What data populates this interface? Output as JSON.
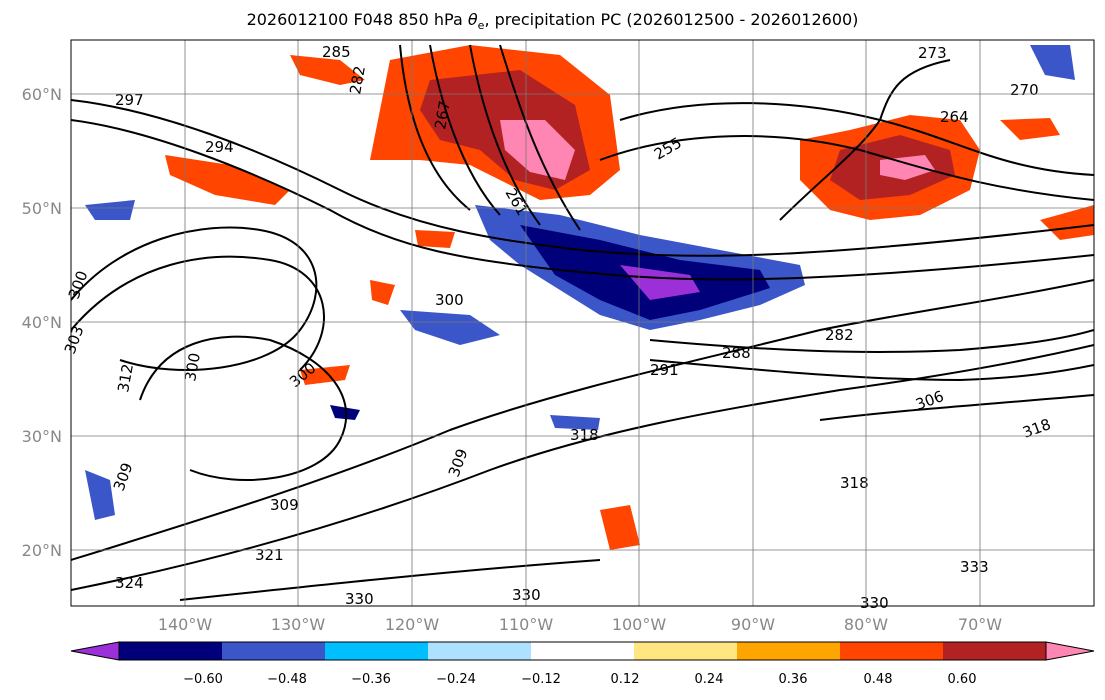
{
  "title_prefix": "2026012100 F048 850 hPa ",
  "title_var": "θ",
  "title_sub": "e",
  "title_suffix": ", precipitation PC (2026012500 - 2026012600)",
  "lat_labels": [
    "60°N",
    "50°N",
    "40°N",
    "30°N",
    "20°N"
  ],
  "lon_labels": [
    "140°W",
    "130°W",
    "120°W",
    "110°W",
    "100°W",
    "90°W",
    "80°W",
    "70°W"
  ],
  "contour_labels": [
    "294",
    "300",
    "303",
    "312",
    "300",
    "309",
    "309",
    "321",
    "324",
    "330",
    "330",
    "330",
    "267",
    "261",
    "255",
    "264",
    "270",
    "282",
    "288",
    "306",
    "318",
    "300",
    "318",
    "291",
    "309",
    "318",
    "282",
    "285",
    "273",
    "300",
    "333",
    "297"
  ],
  "colorbar": {
    "ticks": [
      "−0.60",
      "−0.48",
      "−0.36",
      "−0.24",
      "−0.12",
      "0.12",
      "0.24",
      "0.36",
      "0.48",
      "0.60"
    ],
    "colors": [
      "#9b30d9",
      "#00007a",
      "#3a56c8",
      "#00bfff",
      "#aee0ff",
      "#ffffff",
      "#ffe680",
      "#ffa500",
      "#ff4500",
      "#b22222",
      "#ff85b3"
    ]
  }
}
